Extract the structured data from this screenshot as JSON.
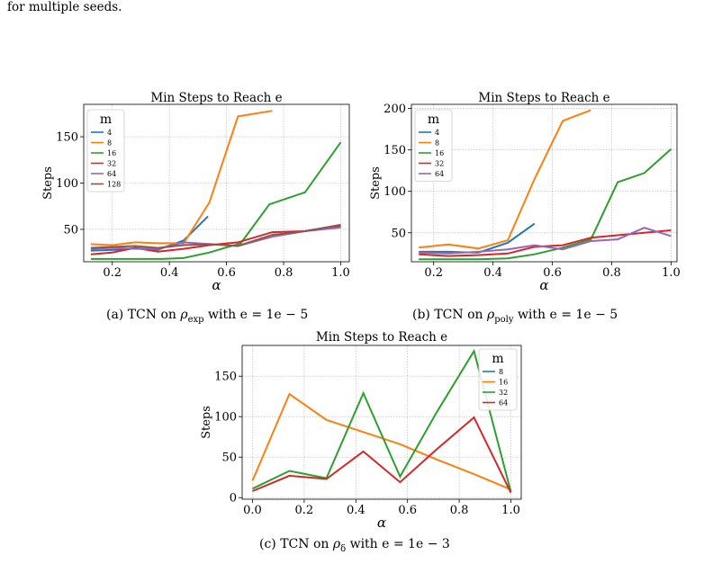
{
  "header_text": "for multiple seeds.",
  "captions": [
    {
      "prefix": "(a) TCN on ",
      "symbol": "ρ",
      "sub": "exp",
      "suffix": " with e = 1e − 5"
    },
    {
      "prefix": "(b) TCN on ",
      "symbol": "ρ",
      "sub": "poly",
      "suffix": " with e = 1e − 5"
    },
    {
      "prefix": "(c) TCN on ",
      "symbol": "ρ",
      "sub": "δ",
      "suffix": " with e = 1e − 3"
    }
  ],
  "chart_data": [
    {
      "type": "line",
      "title": "Min Steps to Reach e",
      "xlabel": "α",
      "ylabel": "Steps",
      "xlim": [
        0.1,
        1.03
      ],
      "ylim": [
        15,
        185
      ],
      "xticks": [
        0.2,
        0.4,
        0.6,
        0.8,
        1.0
      ],
      "xtick_labels": [
        "0.2",
        "0.4",
        "0.6",
        "0.8",
        "1.0"
      ],
      "yticks": [
        50,
        100,
        150
      ],
      "ytick_labels": [
        "50",
        "100",
        "150"
      ],
      "grid": true,
      "legend_title": "m",
      "legend_position": "top-left",
      "series": [
        {
          "name": "4",
          "color": "#1f77b4",
          "x": [
            0.125,
            0.22,
            0.28,
            0.36,
            0.45,
            0.535
          ],
          "y": [
            27,
            28,
            30,
            28,
            38,
            64
          ]
        },
        {
          "name": "8",
          "color": "#ff7f0e",
          "x": [
            0.125,
            0.2,
            0.28,
            0.36,
            0.45,
            0.54,
            0.64,
            0.76
          ],
          "y": [
            34,
            33,
            36,
            35,
            35,
            79,
            172,
            178
          ]
        },
        {
          "name": "16",
          "color": "#2ca02c",
          "x": [
            0.125,
            0.25,
            0.375,
            0.45,
            0.54,
            0.65,
            0.75,
            0.875,
            1.0
          ],
          "y": [
            18,
            18,
            18,
            19,
            25,
            35,
            77,
            90,
            144
          ]
        },
        {
          "name": "32",
          "color": "#d62728",
          "x": [
            0.125,
            0.2,
            0.28,
            0.36,
            0.45,
            0.54,
            0.64,
            0.76,
            0.875,
            1.0
          ],
          "y": [
            23,
            25,
            30,
            26,
            29,
            33,
            36,
            47,
            48,
            54
          ]
        },
        {
          "name": "64",
          "color": "#9467bd",
          "x": [
            0.125,
            0.2,
            0.28,
            0.36,
            0.45,
            0.54,
            0.64,
            0.76,
            0.875,
            1.0
          ],
          "y": [
            29,
            30,
            29,
            29,
            36,
            34,
            32,
            42,
            48,
            52
          ]
        },
        {
          "name": "128",
          "color": "#8c564b",
          "x": [
            0.125,
            0.2,
            0.28,
            0.36,
            0.45,
            0.54,
            0.64,
            0.76,
            0.875,
            1.0
          ],
          "y": [
            30,
            31,
            32,
            30,
            33,
            34,
            32,
            44,
            48,
            55
          ]
        }
      ]
    },
    {
      "type": "line",
      "title": "Min Steps to Reach e",
      "xlabel": "α",
      "ylabel": "Steps",
      "xlim": [
        0.125,
        1.02
      ],
      "ylim": [
        15,
        205
      ],
      "xticks": [
        0.2,
        0.4,
        0.6,
        0.8,
        1.0
      ],
      "xtick_labels": [
        "0.2",
        "0.4",
        "0.6",
        "0.8",
        "1.0"
      ],
      "yticks": [
        50,
        100,
        150,
        200
      ],
      "ytick_labels": [
        "50",
        "100",
        "150",
        "200"
      ],
      "grid": true,
      "legend_title": "m",
      "legend_position": "top-left",
      "series": [
        {
          "name": "4",
          "color": "#1f77b4",
          "x": [
            0.15,
            0.25,
            0.35,
            0.45,
            0.54
          ],
          "y": [
            27,
            27,
            26,
            38,
            61
          ]
        },
        {
          "name": "8",
          "color": "#ff7f0e",
          "x": [
            0.15,
            0.25,
            0.35,
            0.45,
            0.54,
            0.635,
            0.73
          ],
          "y": [
            32,
            36,
            31,
            41,
            115,
            185,
            198
          ]
        },
        {
          "name": "16",
          "color": "#2ca02c",
          "x": [
            0.15,
            0.25,
            0.35,
            0.45,
            0.54,
            0.635,
            0.73,
            0.82,
            0.91,
            1.0
          ],
          "y": [
            18,
            18,
            18,
            19,
            24,
            32,
            42,
            111,
            122,
            151
          ]
        },
        {
          "name": "32",
          "color": "#d62728",
          "x": [
            0.15,
            0.25,
            0.35,
            0.45,
            0.54,
            0.635,
            0.73,
            0.82,
            0.91,
            1.0
          ],
          "y": [
            24,
            22,
            23,
            25,
            33,
            35,
            44,
            47,
            50,
            53
          ]
        },
        {
          "name": "64",
          "color": "#9467bd",
          "x": [
            0.15,
            0.25,
            0.35,
            0.45,
            0.54,
            0.635,
            0.73,
            0.82,
            0.91,
            1.0
          ],
          "y": [
            26,
            25,
            27,
            30,
            35,
            30,
            40,
            42,
            56,
            46
          ]
        }
      ]
    },
    {
      "type": "line",
      "title": "Min Steps to Reach e",
      "xlabel": "α",
      "ylabel": "Steps",
      "xlim": [
        -0.04,
        1.04
      ],
      "ylim": [
        -2,
        188
      ],
      "xticks": [
        0.0,
        0.2,
        0.4,
        0.6,
        0.8,
        1.0
      ],
      "xtick_labels": [
        "0.0",
        "0.2",
        "0.4",
        "0.6",
        "0.8",
        "1.0"
      ],
      "yticks": [
        0,
        50,
        100,
        150
      ],
      "ytick_labels": [
        "0",
        "50",
        "100",
        "150"
      ],
      "grid": true,
      "legend_title": "m",
      "legend_position": "top-right",
      "series": [
        {
          "name": "8",
          "color": "#1f77b4",
          "x": [],
          "y": []
        },
        {
          "name": "16",
          "color": "#ff7f0e",
          "x": [
            0.0,
            0.143,
            0.286,
            0.429,
            0.571,
            0.714,
            0.857,
            1.0
          ],
          "y": [
            21,
            128,
            96,
            81,
            66,
            47,
            29,
            10
          ]
        },
        {
          "name": "32",
          "color": "#2ca02c",
          "x": [
            0.0,
            0.143,
            0.286,
            0.429,
            0.571,
            0.714,
            0.857,
            1.0
          ],
          "y": [
            11,
            33,
            24,
            129,
            26,
            106,
            181,
            7
          ]
        },
        {
          "name": "64",
          "color": "#d62728",
          "x": [
            0.0,
            0.143,
            0.286,
            0.429,
            0.571,
            0.714,
            0.857,
            1.0
          ],
          "y": [
            8,
            27,
            23,
            57,
            19,
            60,
            99,
            6
          ]
        }
      ]
    }
  ]
}
